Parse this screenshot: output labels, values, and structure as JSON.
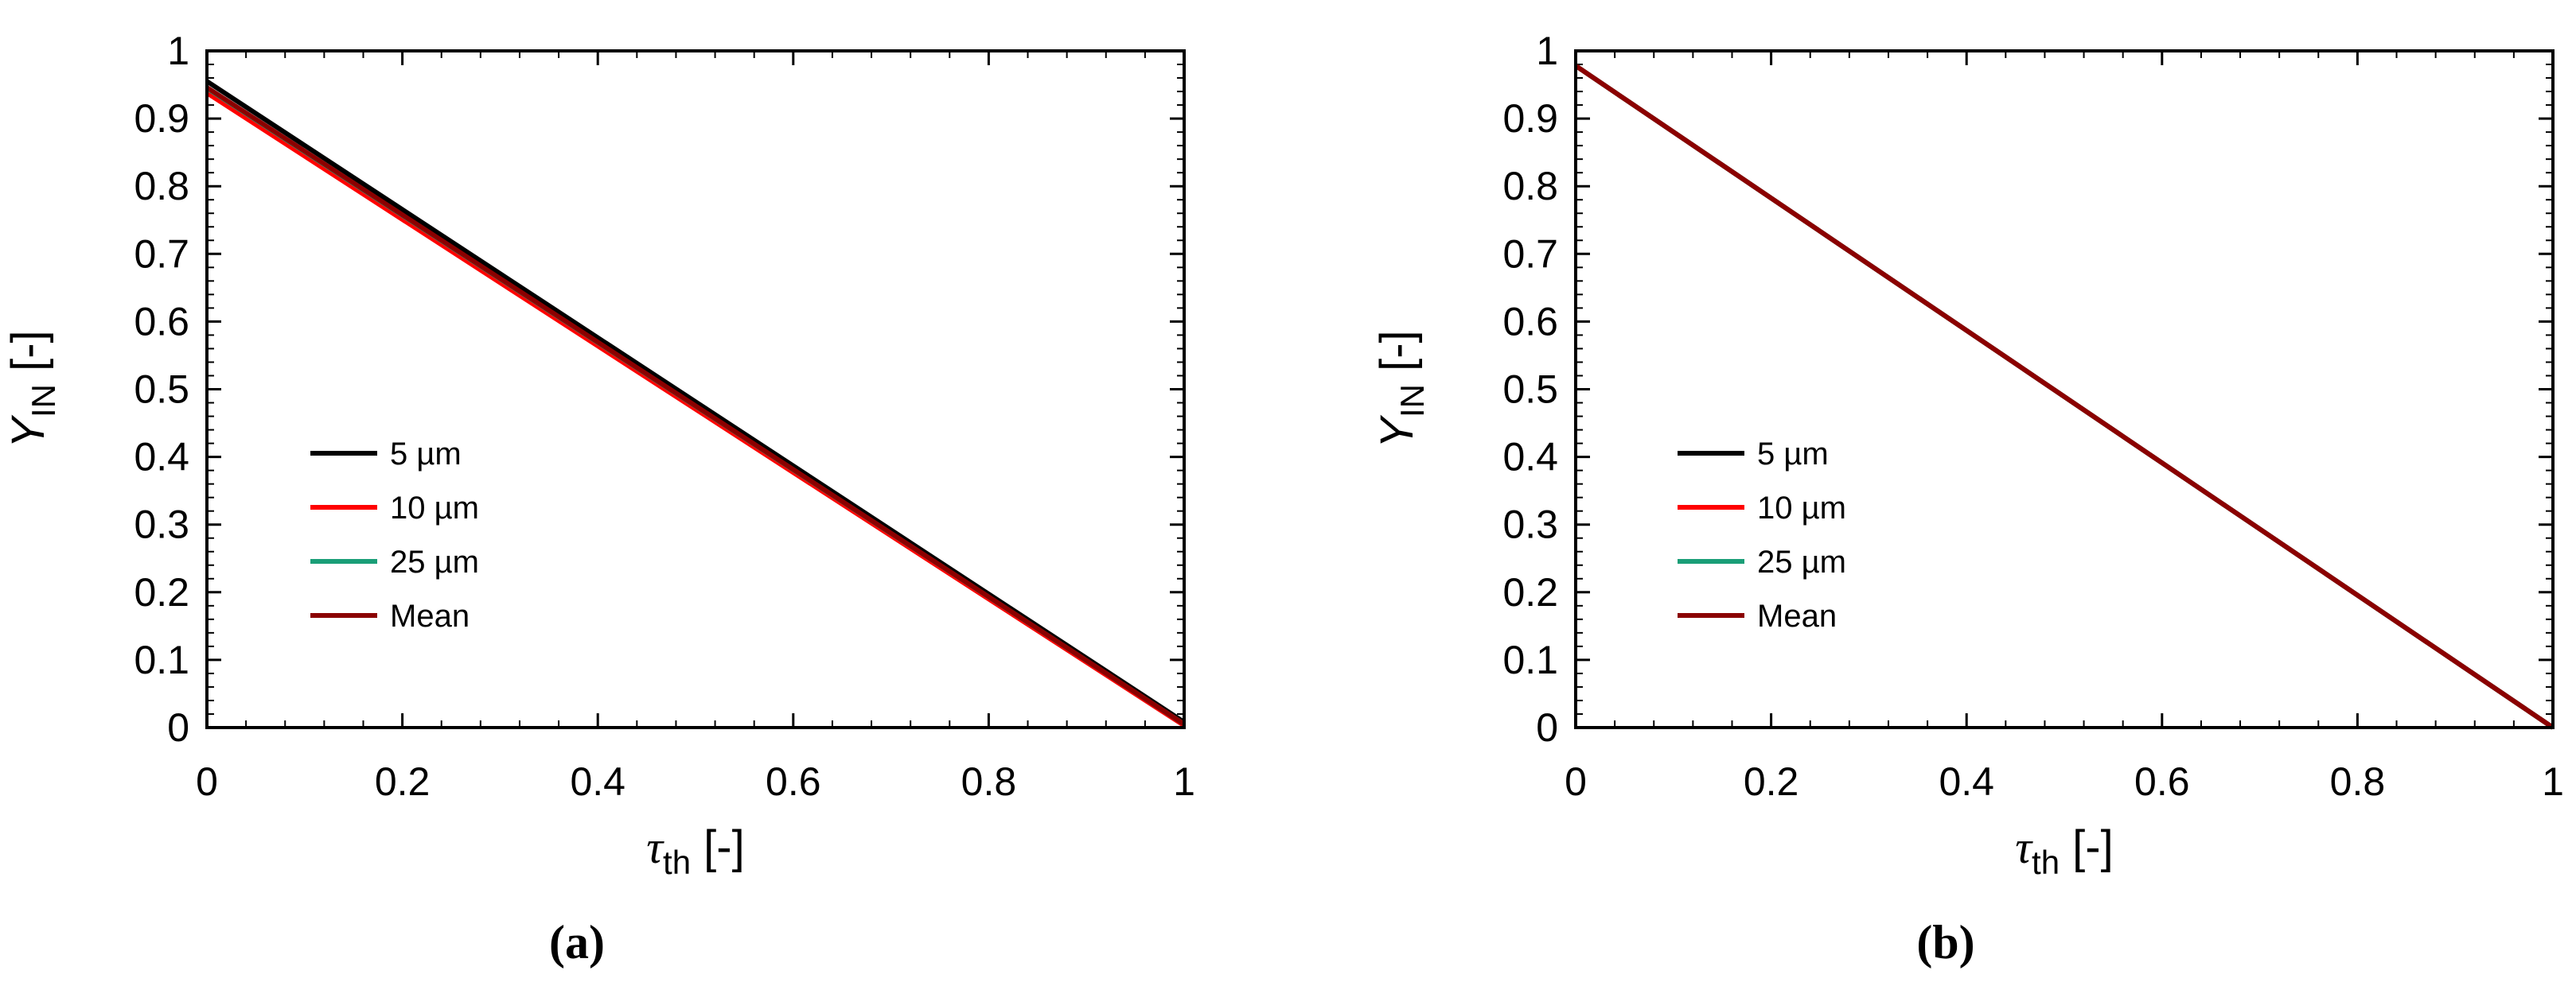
{
  "chart_data": [
    {
      "type": "line",
      "panel_label": "(a)",
      "xlabel": {
        "main": "τ",
        "sub": "th",
        "unit": " [-]"
      },
      "ylabel": {
        "main": "Y",
        "sub": "IN",
        "unit": " [-]"
      },
      "xlim": [
        0,
        1
      ],
      "ylim": [
        0,
        1
      ],
      "xticks": [
        "0",
        "0.2",
        "0.4",
        "0.6",
        "0.8",
        "1"
      ],
      "yticks": [
        "0",
        "0.1",
        "0.2",
        "0.3",
        "0.4",
        "0.5",
        "0.6",
        "0.7",
        "0.8",
        "0.9",
        "1"
      ],
      "grid": false,
      "legend_position": "left-middle",
      "series": [
        {
          "name": " 5 µm",
          "color": "#000000",
          "x": [
            0,
            1
          ],
          "y": [
            0.955,
            0.008
          ]
        },
        {
          "name": "10 µm",
          "color": "#ff0000",
          "x": [
            0,
            1
          ],
          "y": [
            0.938,
            0.003
          ]
        },
        {
          "name": "25 µm",
          "color": "#1a9e77",
          "x": [
            0,
            1
          ],
          "y": [
            0.945,
            0.005
          ]
        },
        {
          "name": "Mean",
          "color": "#8b0000",
          "x": [
            0,
            1
          ],
          "y": [
            0.946,
            0.005
          ]
        }
      ]
    },
    {
      "type": "line",
      "panel_label": "(b)",
      "xlabel": {
        "main": "τ",
        "sub": "th",
        "unit": " [-]"
      },
      "ylabel": {
        "main": "Y",
        "sub": "IN",
        "unit": " [-]"
      },
      "xlim": [
        0,
        1
      ],
      "ylim": [
        0,
        1
      ],
      "xticks": [
        "0",
        "0.2",
        "0.4",
        "0.6",
        "0.8",
        "1"
      ],
      "yticks": [
        "0",
        "0.1",
        "0.2",
        "0.3",
        "0.4",
        "0.5",
        "0.6",
        "0.7",
        "0.8",
        "0.9",
        "1"
      ],
      "grid": false,
      "legend_position": "left-middle",
      "series": [
        {
          "name": " 5 µm",
          "color": "#000000",
          "x": [
            0,
            1
          ],
          "y": [
            0.978,
            0.0
          ]
        },
        {
          "name": "10 µm",
          "color": "#ff0000",
          "x": [
            0,
            1
          ],
          "y": [
            0.978,
            0.0
          ]
        },
        {
          "name": "25 µm",
          "color": "#1a9e77",
          "x": [
            0,
            1
          ],
          "y": [
            0.978,
            0.0
          ]
        },
        {
          "name": "Mean",
          "color": "#8b0000",
          "x": [
            0,
            1
          ],
          "y": [
            0.978,
            0.0
          ]
        }
      ]
    }
  ]
}
